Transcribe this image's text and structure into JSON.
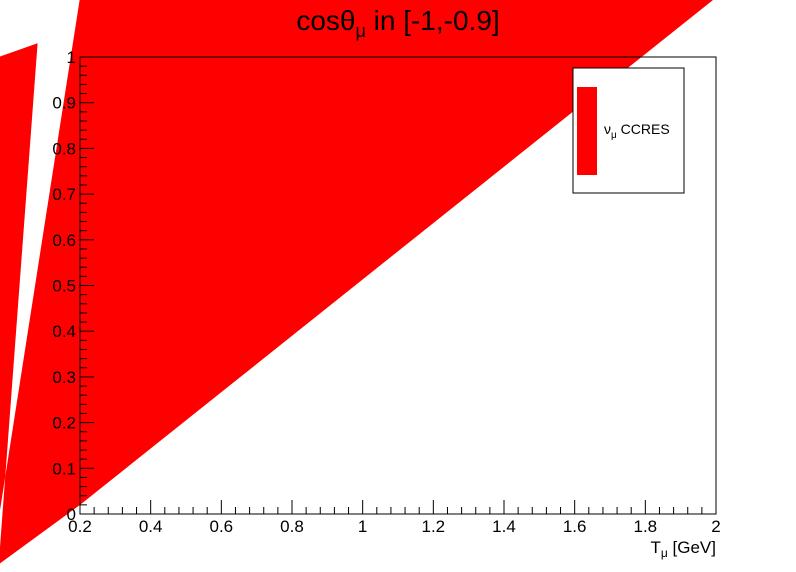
{
  "chart_data": {
    "type": "area",
    "title": {
      "main": "cos",
      "theta": "θ",
      "theta_sub": "μ",
      "rest": " in [-1,-0.9]"
    },
    "xlabel": {
      "main": "T",
      "sub": "μ",
      "rest": " [GeV]"
    },
    "ylabel": "",
    "xlim": [
      0.2,
      2
    ],
    "ylim": [
      0,
      1
    ],
    "x_ticks": [
      "0.2",
      "0.4",
      "0.6",
      "0.8",
      "1",
      "1.2",
      "1.4",
      "1.6",
      "1.8",
      "2"
    ],
    "x_tick_values": [
      0.2,
      0.4,
      0.6,
      0.8,
      1,
      1.2,
      1.4,
      1.6,
      1.8,
      2
    ],
    "y_ticks": [
      "0",
      "0.1",
      "0.2",
      "0.3",
      "0.4",
      "0.5",
      "0.6",
      "0.7",
      "0.8",
      "0.9",
      "1"
    ],
    "y_tick_values": [
      0,
      0.1,
      0.2,
      0.3,
      0.4,
      0.5,
      0.6,
      0.7,
      0.8,
      0.9,
      1
    ],
    "series": [
      {
        "name": "CCRES",
        "legend": {
          "nu": "ν",
          "nu_sub": "μ",
          "rest": " CCRES"
        },
        "color": "#ff0000",
        "polygon": [
          {
            "x": -0.03,
            "y": -0.01
          },
          {
            "x": 0.2,
            "y": 1.13
          },
          {
            "x": 2.0,
            "y": 1.13
          },
          {
            "x": 0.2,
            "y": 0.02
          },
          {
            "x": -0.03,
            "y": -0.11
          },
          {
            "x": 0.08,
            "y": 1.03
          },
          {
            "x": -0.03,
            "y": 1.0
          }
        ]
      }
    ],
    "legend_position": "top-right",
    "grid": false
  }
}
